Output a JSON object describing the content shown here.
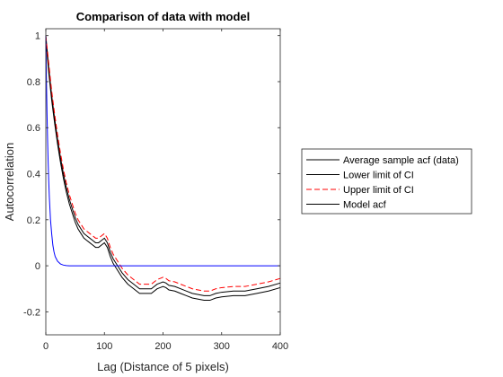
{
  "chart_data": {
    "type": "line",
    "title": "Comparison of data with model",
    "xlabel": "Lag (Distance of 5 pixels)",
    "ylabel": "Autocorrelation",
    "xlim": [
      0,
      400
    ],
    "ylim": [
      -0.3,
      1.03
    ],
    "xticks": [
      0,
      100,
      200,
      300,
      400
    ],
    "yticks": [
      -0.2,
      0,
      0.2,
      0.4,
      0.6,
      0.8,
      1
    ],
    "ytick_labels": [
      "-0.2",
      "0",
      "0.2",
      "0.4",
      "0.6",
      "0.8",
      "1"
    ],
    "grid": false,
    "legend_position": "outside-right",
    "series": [
      {
        "name": "Average sample acf (data)",
        "color": "#000000",
        "style": "solid",
        "x": [
          0,
          5,
          10,
          15,
          20,
          25,
          30,
          35,
          40,
          45,
          50,
          55,
          60,
          65,
          70,
          75,
          80,
          85,
          90,
          95,
          100,
          105,
          110,
          115,
          120,
          130,
          140,
          150,
          160,
          170,
          180,
          190,
          195,
          200,
          205,
          210,
          220,
          230,
          240,
          250,
          260,
          270,
          280,
          290,
          300,
          320,
          340,
          360,
          380,
          400
        ],
        "y": [
          1.0,
          0.86,
          0.74,
          0.64,
          0.55,
          0.47,
          0.4,
          0.34,
          0.29,
          0.25,
          0.21,
          0.18,
          0.16,
          0.14,
          0.13,
          0.12,
          0.11,
          0.1,
          0.1,
          0.11,
          0.12,
          0.1,
          0.06,
          0.03,
          0.01,
          -0.03,
          -0.06,
          -0.08,
          -0.1,
          -0.1,
          -0.1,
          -0.08,
          -0.075,
          -0.07,
          -0.075,
          -0.085,
          -0.09,
          -0.1,
          -0.11,
          -0.12,
          -0.125,
          -0.13,
          -0.13,
          -0.12,
          -0.115,
          -0.11,
          -0.11,
          -0.1,
          -0.09,
          -0.075
        ]
      },
      {
        "name": "Lower limit of CI",
        "color": "#000000",
        "style": "solid",
        "x": [
          0,
          5,
          10,
          15,
          20,
          25,
          30,
          35,
          40,
          45,
          50,
          55,
          60,
          65,
          70,
          75,
          80,
          85,
          90,
          95,
          100,
          105,
          110,
          115,
          120,
          130,
          140,
          150,
          160,
          170,
          180,
          190,
          195,
          200,
          205,
          210,
          220,
          230,
          240,
          250,
          260,
          270,
          280,
          290,
          300,
          320,
          340,
          360,
          380,
          400
        ],
        "y": [
          0.98,
          0.84,
          0.72,
          0.62,
          0.53,
          0.45,
          0.38,
          0.32,
          0.27,
          0.23,
          0.19,
          0.16,
          0.14,
          0.12,
          0.11,
          0.1,
          0.09,
          0.08,
          0.08,
          0.09,
          0.1,
          0.08,
          0.04,
          0.01,
          -0.01,
          -0.05,
          -0.08,
          -0.1,
          -0.12,
          -0.12,
          -0.12,
          -0.1,
          -0.095,
          -0.09,
          -0.095,
          -0.105,
          -0.11,
          -0.12,
          -0.13,
          -0.14,
          -0.145,
          -0.15,
          -0.15,
          -0.14,
          -0.135,
          -0.13,
          -0.13,
          -0.12,
          -0.11,
          -0.095
        ]
      },
      {
        "name": "Upper limit of CI",
        "color": "#ff0000",
        "style": "dashed",
        "x": [
          0,
          5,
          10,
          15,
          20,
          25,
          30,
          35,
          40,
          45,
          50,
          55,
          60,
          65,
          70,
          75,
          80,
          85,
          90,
          95,
          100,
          105,
          110,
          115,
          120,
          130,
          140,
          150,
          160,
          170,
          180,
          190,
          195,
          200,
          205,
          210,
          220,
          230,
          240,
          250,
          260,
          270,
          280,
          290,
          300,
          320,
          340,
          360,
          380,
          400
        ],
        "y": [
          1.0,
          0.88,
          0.76,
          0.66,
          0.57,
          0.49,
          0.42,
          0.36,
          0.31,
          0.27,
          0.23,
          0.2,
          0.18,
          0.16,
          0.15,
          0.14,
          0.13,
          0.12,
          0.12,
          0.13,
          0.14,
          0.12,
          0.08,
          0.05,
          0.03,
          -0.01,
          -0.04,
          -0.06,
          -0.08,
          -0.08,
          -0.08,
          -0.06,
          -0.055,
          -0.05,
          -0.055,
          -0.065,
          -0.07,
          -0.08,
          -0.09,
          -0.1,
          -0.105,
          -0.11,
          -0.11,
          -0.1,
          -0.095,
          -0.09,
          -0.09,
          -0.08,
          -0.07,
          -0.055
        ]
      },
      {
        "name": "Model acf",
        "color": "#0000ff",
        "legend_color": "#000000",
        "style": "solid",
        "x": [
          0,
          1,
          2,
          3,
          4,
          5,
          6,
          7,
          8,
          10,
          12,
          14,
          16,
          18,
          20,
          25,
          30,
          35,
          40,
          50,
          60,
          80,
          100,
          150,
          200,
          250,
          300,
          350,
          400
        ],
        "y": [
          1.0,
          0.82,
          0.67,
          0.55,
          0.45,
          0.37,
          0.3,
          0.25,
          0.2,
          0.14,
          0.09,
          0.06,
          0.04,
          0.03,
          0.02,
          0.008,
          0.003,
          0.001,
          0.0,
          0.0,
          0.0,
          0.0,
          0.0,
          0.0,
          0.0,
          0.0,
          0.0,
          0.0,
          0.0
        ]
      }
    ]
  }
}
